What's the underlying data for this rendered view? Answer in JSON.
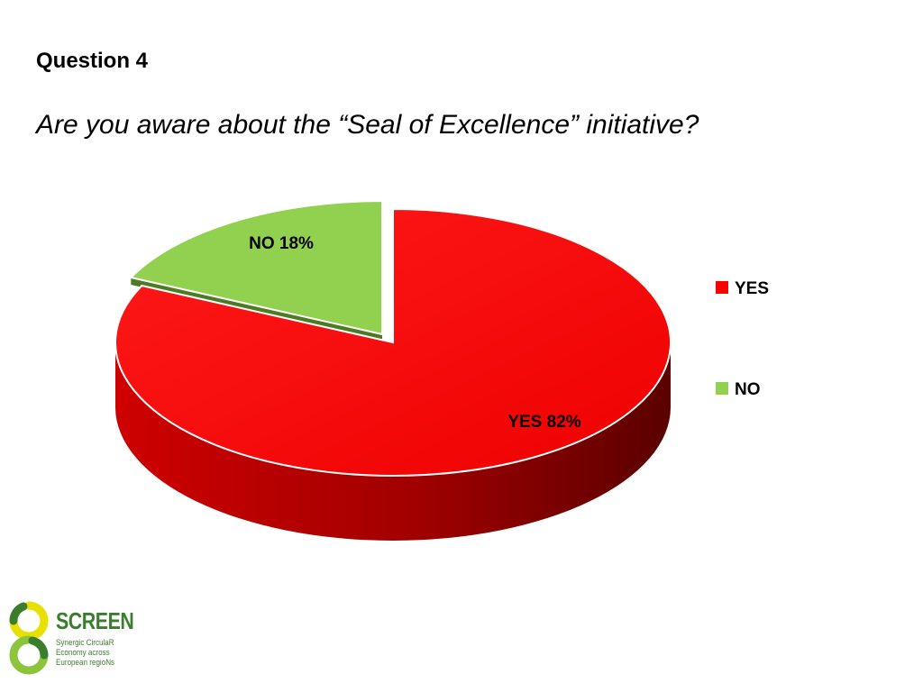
{
  "slide": {
    "heading": "Question 4",
    "question": "Are you aware about the “Seal of Excellence” initiative?"
  },
  "chart_data": {
    "type": "pie",
    "three_d": true,
    "exploded_slice": "NO",
    "categories": [
      "YES",
      "NO"
    ],
    "values": [
      82,
      18
    ],
    "data_labels": [
      "YES 82%",
      "NO 18%"
    ],
    "colors": [
      "#ff0000",
      "#92d050"
    ],
    "legend": {
      "placement": "right",
      "entries": [
        "YES",
        "NO"
      ]
    }
  },
  "logo": {
    "name": "SCREEN",
    "tagline": [
      "Synergic CirculaR",
      "Economy across",
      "European regioNs"
    ],
    "colors": {
      "primary": "#3a7d2c",
      "accent": "#e8e000"
    }
  }
}
